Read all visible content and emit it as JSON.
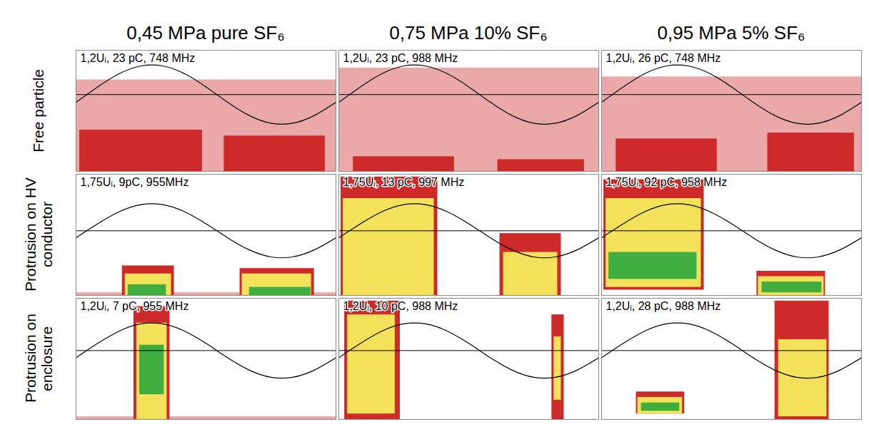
{
  "column_titles": [
    "0,45 MPa pure SF₆",
    "0,75 MPa 10% SF₆",
    "0,95 MPa 5% SF₆"
  ],
  "row_titles": [
    "Free particle",
    "Protrusion on HV conductor",
    "Protrusion on enclosure"
  ],
  "reference_wave": {
    "x": [
      0,
      30,
      60,
      90,
      120,
      150,
      180,
      210,
      240,
      270,
      300,
      330,
      360
    ],
    "y": [
      -0.26,
      0.26,
      0.71,
      0.97,
      0.97,
      0.71,
      0.26,
      -0.26,
      -0.71,
      -0.97,
      -0.97,
      -0.71,
      -0.26
    ],
    "zero_line": 0
  },
  "chart_data": [
    {
      "type": "density",
      "annotation": "1,2Uᵢ, 23 pC, 748 MHz",
      "xlim": [
        0,
        360
      ],
      "ylim": [
        -2.6,
        1.5
      ],
      "tick_labels": false,
      "grid": false,
      "colors": [
        "#eaa8a8",
        "#cf2a2a",
        "#f4e15a",
        "#3fae3f"
      ],
      "regions": [
        {
          "x1": 0,
          "x2": 360,
          "y1": -2.6,
          "y2": 0.5,
          "level": 1
        },
        {
          "x1": 5,
          "x2": 175,
          "y1": -2.6,
          "y2": -1.2,
          "level": 2
        },
        {
          "x1": 205,
          "x2": 345,
          "y1": -2.6,
          "y2": -1.4,
          "level": 2
        }
      ]
    },
    {
      "type": "density",
      "annotation": "1,2Uᵢ, 23 pC, 988 MHz",
      "xlim": [
        0,
        360
      ],
      "ylim": [
        -2.6,
        1.5
      ],
      "tick_labels": false,
      "grid": false,
      "colors": [
        "#eaa8a8",
        "#cf2a2a",
        "#f4e15a",
        "#3fae3f"
      ],
      "regions": [
        {
          "x1": 0,
          "x2": 360,
          "y1": -2.6,
          "y2": 0.9,
          "level": 1
        },
        {
          "x1": 20,
          "x2": 160,
          "y1": -2.6,
          "y2": -2.1,
          "level": 2
        },
        {
          "x1": 220,
          "x2": 340,
          "y1": -2.6,
          "y2": -2.2,
          "level": 2
        }
      ]
    },
    {
      "type": "density",
      "annotation": "1,2Uᵢ, 26 pC, 748 MHz",
      "xlim": [
        0,
        360
      ],
      "ylim": [
        -2.6,
        1.5
      ],
      "tick_labels": false,
      "grid": false,
      "colors": [
        "#eaa8a8",
        "#cf2a2a",
        "#f4e15a",
        "#3fae3f"
      ],
      "regions": [
        {
          "x1": 0,
          "x2": 360,
          "y1": -2.6,
          "y2": 0.6,
          "level": 1
        },
        {
          "x1": 20,
          "x2": 160,
          "y1": -2.6,
          "y2": -1.5,
          "level": 2
        },
        {
          "x1": 230,
          "x2": 350,
          "y1": -2.6,
          "y2": -1.3,
          "level": 2
        }
      ]
    },
    {
      "type": "density",
      "annotation": "1,75Uᵢ, 9pC, 955MHz",
      "xlim": [
        0,
        360
      ],
      "ylim": [
        -2.4,
        2.1
      ],
      "tick_labels": false,
      "grid": false,
      "colors": [
        "#eaa8a8",
        "#cf2a2a",
        "#f4e15a",
        "#3fae3f"
      ],
      "regions": [
        {
          "x1": 0,
          "x2": 360,
          "y1": -2.4,
          "y2": -2.3,
          "level": 1
        },
        {
          "x1": 64,
          "x2": 136,
          "y1": -2.4,
          "y2": -1.3,
          "level": 2
        },
        {
          "x1": 227,
          "x2": 330,
          "y1": -2.4,
          "y2": -1.4,
          "level": 2
        },
        {
          "x1": 68,
          "x2": 132,
          "y1": -2.4,
          "y2": -1.6,
          "level": 3
        },
        {
          "x1": 230,
          "x2": 326,
          "y1": -2.4,
          "y2": -1.6,
          "level": 3
        },
        {
          "x1": 72,
          "x2": 125,
          "y1": -2.4,
          "y2": -2.0,
          "level": 4
        },
        {
          "x1": 240,
          "x2": 325,
          "y1": -2.4,
          "y2": -2.1,
          "level": 4
        }
      ]
    },
    {
      "type": "density",
      "annotation": "1,75Uᵢ, 13 pC, 997 MHz",
      "xlim": [
        0,
        360
      ],
      "ylim": [
        -2.4,
        2.1
      ],
      "tick_labels": false,
      "grid": false,
      "colors": [
        "#eaa8a8",
        "#cf2a2a",
        "#f4e15a",
        "#3fae3f"
      ],
      "regions": [
        {
          "x1": 3,
          "x2": 137,
          "y1": -2.4,
          "y2": 2.0,
          "level": 2
        },
        {
          "x1": 223,
          "x2": 308,
          "y1": -2.4,
          "y2": -0.1,
          "level": 2
        },
        {
          "x1": 6,
          "x2": 132,
          "y1": -2.4,
          "y2": 1.2,
          "level": 3
        },
        {
          "x1": 228,
          "x2": 303,
          "y1": -2.4,
          "y2": -0.8,
          "level": 3
        }
      ]
    },
    {
      "type": "density",
      "annotation": "1,75Uᵢ, 92 pC, 958 MHz",
      "xlim": [
        0,
        360
      ],
      "ylim": [
        -2.4,
        2.1
      ],
      "tick_labels": false,
      "grid": false,
      "colors": [
        "#eaa8a8",
        "#cf2a2a",
        "#f4e15a",
        "#3fae3f"
      ],
      "regions": [
        {
          "x1": 3,
          "x2": 142,
          "y1": -2.2,
          "y2": 1.9,
          "level": 2
        },
        {
          "x1": 215,
          "x2": 310,
          "y1": -2.4,
          "y2": -1.5,
          "level": 2
        },
        {
          "x1": 6,
          "x2": 138,
          "y1": -2.1,
          "y2": 1.2,
          "level": 3
        },
        {
          "x1": 217,
          "x2": 308,
          "y1": -2.4,
          "y2": -1.7,
          "level": 3
        },
        {
          "x1": 10,
          "x2": 132,
          "y1": -1.8,
          "y2": -0.8,
          "level": 4
        },
        {
          "x1": 222,
          "x2": 305,
          "y1": -2.3,
          "y2": -1.9,
          "level": 4
        }
      ]
    },
    {
      "type": "density",
      "annotation": "1,2Uᵢ, 7 pC, 955 MHz",
      "xlim": [
        0,
        360
      ],
      "ylim": [
        -2.5,
        1.9
      ],
      "tick_labels": false,
      "grid": false,
      "colors": [
        "#eaa8a8",
        "#cf2a2a",
        "#f4e15a",
        "#3fae3f"
      ],
      "regions": [
        {
          "x1": 0,
          "x2": 360,
          "y1": -2.5,
          "y2": -2.4,
          "level": 1
        },
        {
          "x1": 80,
          "x2": 130,
          "y1": -2.5,
          "y2": 1.6,
          "level": 2
        },
        {
          "x1": 84,
          "x2": 126,
          "y1": -2.5,
          "y2": 1.0,
          "level": 3
        },
        {
          "x1": 88,
          "x2": 122,
          "y1": -1.6,
          "y2": 0.2,
          "level": 4
        }
      ]
    },
    {
      "type": "density",
      "annotation": "1,2Uᵢ, 10 pC, 988 MHz",
      "xlim": [
        0,
        360
      ],
      "ylim": [
        -2.5,
        1.9
      ],
      "tick_labels": false,
      "grid": false,
      "colors": [
        "#eaa8a8",
        "#cf2a2a",
        "#f4e15a",
        "#3fae3f"
      ],
      "regions": [
        {
          "x1": 8,
          "x2": 85,
          "y1": -2.5,
          "y2": 1.8,
          "level": 2
        },
        {
          "x1": 295,
          "x2": 312,
          "y1": -2.5,
          "y2": 1.3,
          "level": 2
        },
        {
          "x1": 12,
          "x2": 78,
          "y1": -2.3,
          "y2": 1.3,
          "level": 3
        },
        {
          "x1": 298,
          "x2": 308,
          "y1": -1.8,
          "y2": 0.5,
          "level": 3
        }
      ]
    },
    {
      "type": "density",
      "annotation": "1,2Uᵢ, 28 pC, 988 MHz",
      "xlim": [
        0,
        360
      ],
      "ylim": [
        -2.5,
        1.9
      ],
      "tick_labels": false,
      "grid": false,
      "colors": [
        "#eaa8a8",
        "#cf2a2a",
        "#f4e15a",
        "#3fae3f"
      ],
      "regions": [
        {
          "x1": 48,
          "x2": 115,
          "y1": -2.3,
          "y2": -1.5,
          "level": 2
        },
        {
          "x1": 240,
          "x2": 315,
          "y1": -2.5,
          "y2": 1.8,
          "level": 2
        },
        {
          "x1": 50,
          "x2": 112,
          "y1": -2.3,
          "y2": -1.7,
          "level": 3
        },
        {
          "x1": 245,
          "x2": 312,
          "y1": -2.4,
          "y2": 0.4,
          "level": 3
        },
        {
          "x1": 55,
          "x2": 108,
          "y1": -2.2,
          "y2": -1.9,
          "level": 4
        }
      ]
    }
  ]
}
